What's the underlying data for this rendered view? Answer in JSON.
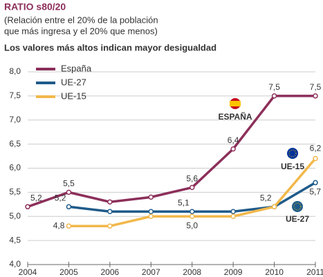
{
  "chart_data": {
    "type": "line",
    "title": "RATIO s80/20",
    "subtitle": [
      "(Relación entre el 20% de la población",
      "que más ingresa y el 20% que menos)"
    ],
    "heading": "Los valores más altos indican mayor desigualdad",
    "x": [
      2004,
      2005,
      2006,
      2007,
      2008,
      2009,
      2010,
      2011
    ],
    "xlim": [
      2004,
      2011
    ],
    "xticks": [
      2004,
      2005,
      2006,
      2007,
      2008,
      2009,
      2010,
      2011
    ],
    "ylim": [
      4,
      8
    ],
    "yticks": [
      {
        "value": 4,
        "label": "4,0"
      },
      {
        "value": 4.5,
        "label": "4,5"
      },
      {
        "value": 5,
        "label": "5,0"
      },
      {
        "value": 5.5,
        "label": "5,5"
      },
      {
        "value": 6,
        "label": "6,0"
      },
      {
        "value": 6.5,
        "label": "6,5"
      },
      {
        "value": 7,
        "label": "7,0"
      },
      {
        "value": 7.5,
        "label": "7,5"
      },
      {
        "value": 8,
        "label": "8,0"
      }
    ],
    "grid": true,
    "legend": "top-left",
    "series": [
      {
        "name": "España",
        "color": "#8c2f5a",
        "values": [
          5.2,
          5.5,
          5.3,
          5.4,
          5.6,
          6.4,
          7.5,
          7.5
        ],
        "value_labels": [
          "5,2",
          "5,5",
          null,
          null,
          "5,6",
          "6,4",
          "7,5",
          "7,5"
        ]
      },
      {
        "name": "UE-27",
        "color": "#1f5b8a",
        "values": [
          null,
          5.2,
          5.1,
          5.1,
          5.1,
          5.1,
          5.2,
          5.7
        ],
        "value_labels": [
          null,
          "5,2",
          null,
          null,
          "5,1",
          null,
          "5,2",
          "5,7"
        ]
      },
      {
        "name": "UE-15",
        "color": "#f2b84b",
        "values": [
          null,
          4.8,
          4.8,
          5.0,
          5.0,
          5.0,
          5.2,
          6.2
        ],
        "value_labels": [
          null,
          "4,8",
          null,
          null,
          "5,0",
          null,
          null,
          "6,2"
        ]
      }
    ],
    "annotations": [
      "ESPAÑA",
      "UE-15",
      "UE-27"
    ]
  }
}
